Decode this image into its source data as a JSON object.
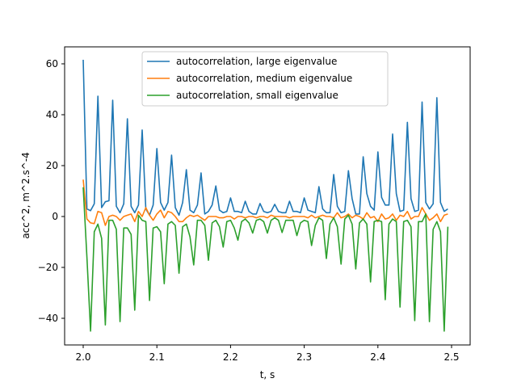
{
  "chart_data": {
    "type": "line",
    "title": "",
    "xlabel": "t, s",
    "ylabel": "acc^2, m^2.s^-4",
    "xlim": [
      1.975,
      2.52
    ],
    "ylim": [
      -50.5,
      66
    ],
    "xticks": [
      2.0,
      2.1,
      2.2,
      2.3,
      2.4,
      2.5
    ],
    "xtick_labels": [
      "2.0",
      "2.1",
      "2.2",
      "2.3",
      "2.4",
      "2.5"
    ],
    "yticks": [
      -40,
      -20,
      0,
      20,
      40,
      60
    ],
    "ytick_labels": [
      "−40",
      "−20",
      "0",
      "20",
      "40",
      "60"
    ],
    "grid": false,
    "legend_position": "top-center",
    "x": [
      2.0,
      2.005,
      2.01,
      2.015,
      2.02,
      2.025,
      2.03,
      2.035,
      2.04,
      2.045,
      2.05,
      2.055,
      2.06,
      2.065,
      2.07,
      2.075,
      2.08,
      2.085,
      2.09,
      2.095,
      2.1,
      2.105,
      2.11,
      2.115,
      2.12,
      2.125,
      2.13,
      2.135,
      2.14,
      2.145,
      2.15,
      2.155,
      2.16,
      2.165,
      2.17,
      2.175,
      2.18,
      2.185,
      2.19,
      2.195,
      2.2,
      2.205,
      2.21,
      2.215,
      2.22,
      2.225,
      2.23,
      2.235,
      2.24,
      2.245,
      2.25,
      2.255,
      2.26,
      2.265,
      2.27,
      2.275,
      2.28,
      2.285,
      2.29,
      2.295,
      2.3,
      2.305,
      2.31,
      2.315,
      2.32,
      2.325,
      2.33,
      2.335,
      2.34,
      2.345,
      2.35,
      2.355,
      2.36,
      2.365,
      2.37,
      2.375,
      2.38,
      2.385,
      2.39,
      2.395,
      2.4,
      2.405,
      2.41,
      2.415,
      2.42,
      2.425,
      2.43,
      2.435,
      2.44,
      2.445,
      2.45,
      2.455,
      2.46,
      2.465,
      2.47,
      2.475,
      2.48,
      2.485,
      2.49,
      2.495
    ],
    "series": [
      {
        "name": "autocorrelation, large eigenvalue",
        "color": "#1f77b4",
        "values": [
          61.6,
          3,
          2.3,
          5,
          47.3,
          3.5,
          5.8,
          6.2,
          45.7,
          4,
          1.5,
          5,
          38.4,
          4,
          1.5,
          4.5,
          34,
          3,
          0.5,
          4.5,
          26.7,
          5.5,
          2.5,
          5.5,
          24.1,
          3.5,
          0.5,
          5.5,
          18.4,
          2.5,
          1.5,
          4.5,
          17.1,
          1,
          2,
          4.5,
          12,
          2.5,
          1.5,
          2,
          7.3,
          2,
          2,
          1.5,
          6,
          2,
          1,
          1,
          5.1,
          2,
          1.5,
          2,
          4.8,
          2,
          1.5,
          1.5,
          6,
          2,
          2,
          1.5,
          7.3,
          2.5,
          2,
          1.5,
          11.7,
          3,
          1.5,
          1.5,
          16.5,
          4,
          1.5,
          2,
          18,
          7,
          1,
          1,
          23.5,
          9,
          4,
          2.5,
          25.4,
          7.5,
          4.5,
          4.5,
          32.4,
          9,
          2,
          2.5,
          37,
          7,
          2,
          2.5,
          45,
          5.5,
          3,
          5,
          46.7,
          5.5,
          2,
          3
        ]
      },
      {
        "name": "autocorrelation, medium eigenvalue",
        "color": "#ff7f0e",
        "values": [
          14.5,
          -1,
          -2.5,
          -2.8,
          2,
          1.5,
          -3.5,
          0,
          0.5,
          0,
          -1.5,
          0,
          0.5,
          1,
          -2,
          2,
          0,
          3.5,
          0.5,
          -1.5,
          1,
          2.5,
          -0.5,
          2,
          1.5,
          0,
          -2,
          -2,
          -0.5,
          0.5,
          0,
          0.5,
          -0.5,
          -1.5,
          0,
          0,
          0,
          -0.5,
          -0.5,
          0,
          0,
          -1,
          0,
          0,
          -0.5,
          0,
          0,
          -0.5,
          0,
          0,
          -0.5,
          0.5,
          0,
          0,
          0,
          0,
          -0.5,
          0,
          0,
          0,
          0,
          -0.5,
          0.5,
          -0.5,
          0,
          0.5,
          0,
          0,
          -0.5,
          1.5,
          -0.5,
          0,
          1,
          -0.5,
          0.5,
          0,
          -1,
          1.5,
          -0.5,
          0,
          -2,
          1,
          -1,
          -0.5,
          1,
          -1.5,
          0.5,
          0,
          2,
          -1,
          0,
          0,
          3.5,
          1,
          -1.5,
          -0.5,
          1,
          -2,
          0.5,
          1
        ]
      },
      {
        "name": "autocorrelation, small eigenvalue",
        "color": "#2ca02c",
        "values": [
          11.5,
          -16,
          -45,
          -6,
          -3,
          -8.6,
          -42.6,
          -1.5,
          -1.5,
          -5,
          -41.3,
          -4.5,
          -4.5,
          -7,
          -36.8,
          0.5,
          -1.5,
          -2,
          -33,
          -4.5,
          -4,
          -6,
          -26.4,
          -3,
          -2,
          -3.5,
          -22.3,
          -4,
          -3,
          -8,
          -19,
          -1.5,
          -1.5,
          -3.5,
          -17.2,
          -2.5,
          -1.5,
          -4,
          -12,
          -2,
          -1.5,
          -4.5,
          -9.3,
          -2,
          -1,
          -2.5,
          -6.5,
          -1.5,
          -1,
          -2,
          -6.5,
          -1.5,
          -0.5,
          -1.5,
          -6.3,
          -1.5,
          -1.5,
          -1.5,
          -7.5,
          -2.5,
          -1.5,
          -2,
          -11.4,
          -3.5,
          -0.5,
          -1.5,
          -16.5,
          -3,
          -0.5,
          -4,
          -18.7,
          -1,
          0.5,
          -3,
          -20.6,
          -2.5,
          -1,
          -3,
          -25.7,
          -2,
          -1.5,
          -2,
          -32.7,
          -3,
          -1,
          -2,
          -35.6,
          -2,
          -1.5,
          -4,
          -40.9,
          -2,
          -2,
          1,
          -41.3,
          -5,
          -2,
          -6,
          -45,
          -4
        ]
      }
    ]
  }
}
